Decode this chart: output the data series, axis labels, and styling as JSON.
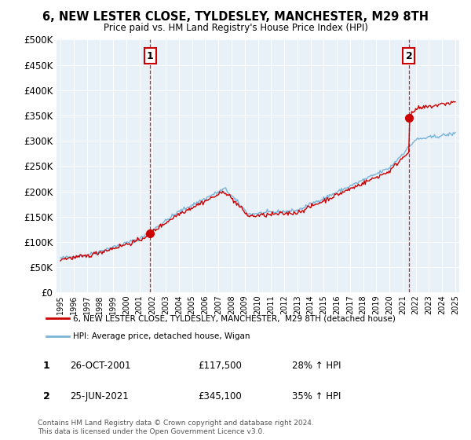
{
  "title": "6, NEW LESTER CLOSE, TYLDESLEY, MANCHESTER, M29 8TH",
  "subtitle": "Price paid vs. HM Land Registry's House Price Index (HPI)",
  "legend_line1": "6, NEW LESTER CLOSE, TYLDESLEY, MANCHESTER,  M29 8TH (detached house)",
  "legend_line2": "HPI: Average price, detached house, Wigan",
  "purchase1_date": "26-OCT-2001",
  "purchase1_price": 117500,
  "purchase1_label": "28% ↑ HPI",
  "purchase1_x": 2001.82,
  "purchase2_date": "25-JUN-2021",
  "purchase2_price": 345100,
  "purchase2_label": "35% ↑ HPI",
  "purchase2_x": 2021.48,
  "hpi_color": "#7ab4d8",
  "price_color": "#cc0000",
  "vline_color": "#cc0000",
  "background_color": "#ffffff",
  "plot_bg_color": "#e8f0f8",
  "grid_color": "#ffffff",
  "footnote1": "Contains HM Land Registry data © Crown copyright and database right 2024.",
  "footnote2": "This data is licensed under the Open Government Licence v3.0.",
  "ylim": [
    0,
    500000
  ],
  "yticks": [
    0,
    50000,
    100000,
    150000,
    200000,
    250000,
    300000,
    350000,
    400000,
    450000,
    500000
  ],
  "xlim_start": 1994.7,
  "xlim_end": 2025.3
}
